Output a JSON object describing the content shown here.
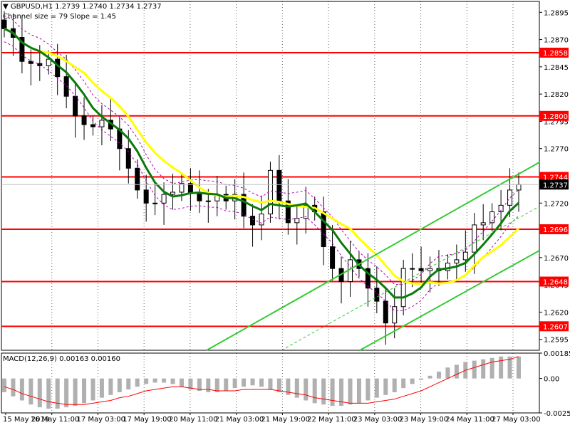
{
  "header": {
    "symbol_line": "GBPUSD,H1  1.2739 1.2740 1.2734 1.2737",
    "channel_line": "Channel size = 79 Slope = 1.45",
    "macd_line": "MACD(12,26,9) 0.00163 0.00160"
  },
  "colors": {
    "level_line": "#ff0000",
    "price_label_bg": "#ff0000",
    "current_price_bg": "#000000",
    "candles": "#000000",
    "ma_fast": "#0b7a0b",
    "ma_slow": "#ffff00",
    "channel": "#33cc33",
    "bollinger": "#b400b4",
    "macd_hist": "#b0b0b0",
    "macd_signal": "#ff0000"
  },
  "chart_data": {
    "type": "candlestick",
    "symbol": "GBPUSD",
    "timeframe": "H1",
    "current_price": "1.2737",
    "y_axis_ticks": [
      "1.2895",
      "1.2870",
      "1.2845",
      "1.2820",
      "1.2795",
      "1.2770",
      "1.2745",
      "1.2720",
      "1.2695",
      "1.2670",
      "1.2645",
      "1.2620",
      "1.2595"
    ],
    "ylim": [
      1.2585,
      1.2905
    ],
    "horizontal_levels": [
      "1.2858",
      "1.2800",
      "1.2744",
      "1.2696",
      "1.2648",
      "1.2607"
    ],
    "x_axis_ticks": [
      "15 May 2019",
      "16 May 11:00",
      "17 May 03:00",
      "17 May 19:00",
      "20 May 11:00",
      "21 May 03:00",
      "21 May 19:00",
      "22 May 11:00",
      "23 May 03:00",
      "23 May 19:00",
      "24 May 11:00",
      "27 May 03:00"
    ],
    "close_series": [
      1.288,
      1.2872,
      1.285,
      1.2848,
      1.2846,
      1.2852,
      1.2836,
      1.2818,
      1.28,
      1.2792,
      1.279,
      1.2796,
      1.2788,
      1.277,
      1.2752,
      1.2732,
      1.272,
      1.272,
      1.2728,
      1.273,
      1.2738,
      1.273,
      1.2722,
      1.2722,
      1.2728,
      1.2722,
      1.2728,
      1.2708,
      1.27,
      1.271,
      1.275,
      1.2722,
      1.2702,
      1.2706,
      1.2718,
      1.2712,
      1.268,
      1.266,
      1.2648,
      1.2668,
      1.266,
      1.2642,
      1.263,
      1.261,
      1.2625,
      1.266,
      1.266,
      1.2658,
      1.266,
      1.2658,
      1.2665,
      1.2668,
      1.2675,
      1.27,
      1.2702,
      1.2712,
      1.2718,
      1.2732,
      1.2737
    ],
    "macd": {
      "title": "MACD(12,26,9) 0.00163 0.00160",
      "y_axis_ticks": [
        "0.00185",
        "0.00",
        "-0.00251"
      ],
      "ylim": [
        -0.00251,
        0.00185
      ],
      "histogram": [
        -0.001,
        -0.0013,
        -0.0016,
        -0.0019,
        -0.0021,
        -0.0022,
        -0.0022,
        -0.0021,
        -0.002,
        -0.0018,
        -0.0016,
        -0.0014,
        -0.0012,
        -0.001,
        -0.0008,
        -0.0006,
        -0.0004,
        -0.0003,
        -0.0003,
        -0.0004,
        -0.0006,
        -0.0008,
        -0.0009,
        -0.001,
        -0.001,
        -0.0009,
        -0.0007,
        -0.0006,
        -0.0005,
        -0.0006,
        -0.0008,
        -0.001,
        -0.0012,
        -0.0014,
        -0.0016,
        -0.0018,
        -0.0019,
        -0.002,
        -0.002,
        -0.0019,
        -0.0018,
        -0.0016,
        -0.0014,
        -0.0012,
        -0.001,
        -0.0007,
        -0.0004,
        -0.0001,
        0.0002,
        0.0005,
        0.0008,
        0.001,
        0.0012,
        0.0013,
        0.0014,
        0.0015,
        0.0016,
        0.0016,
        0.0016
      ],
      "signal": [
        -0.0006,
        -0.0008,
        -0.0011,
        -0.0013,
        -0.0015,
        -0.0017,
        -0.0018,
        -0.0019,
        -0.0019,
        -0.0019,
        -0.0018,
        -0.0017,
        -0.0016,
        -0.0014,
        -0.0013,
        -0.0011,
        -0.0009,
        -0.0008,
        -0.0007,
        -0.0006,
        -0.0006,
        -0.0007,
        -0.0008,
        -0.0008,
        -0.0009,
        -0.0009,
        -0.0009,
        -0.0008,
        -0.0008,
        -0.0008,
        -0.0008,
        -0.0009,
        -0.001,
        -0.0011,
        -0.0012,
        -0.0014,
        -0.0015,
        -0.0016,
        -0.0017,
        -0.0018,
        -0.0018,
        -0.0018,
        -0.0017,
        -0.0016,
        -0.0015,
        -0.0013,
        -0.0011,
        -0.0009,
        -0.0006,
        -0.0003,
        0.0,
        0.0003,
        0.0006,
        0.0008,
        0.001,
        0.0012,
        0.0013,
        0.0014,
        0.0016
      ]
    }
  }
}
